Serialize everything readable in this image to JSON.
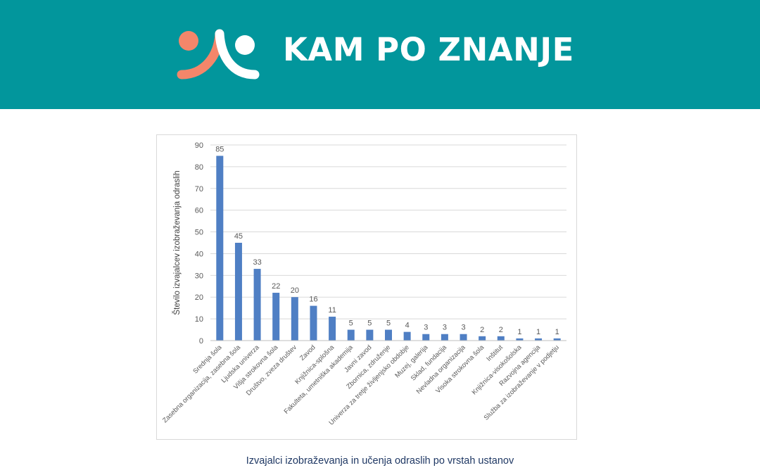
{
  "header": {
    "brand_name": "KAM PO ZNANJE",
    "background_color": "#02969c",
    "logo": {
      "icon": "kam-po-znanje-logo",
      "colors": [
        "#f4866a",
        "#ffffff"
      ]
    }
  },
  "chart_data": {
    "type": "bar",
    "title": "",
    "xlabel": "",
    "ylabel": "Število izvajalcev izobraževanja odraslih",
    "ylim": [
      0,
      90
    ],
    "yticks": [
      0,
      10,
      20,
      30,
      40,
      50,
      60,
      70,
      80,
      90
    ],
    "grid": true,
    "bar_color": "#4f7fc4",
    "categories": [
      "Srednja šola",
      "Zasebna organizacija, zasebna šola",
      "Ljudska univerza",
      "Višja strokovna šola",
      "Društvo, zveza društev",
      "Zavod",
      "Knjižnica-splošna",
      "Fakulteta, umetniška akademija",
      "Javni zavod",
      "Zbornica, združenje",
      "Univerza za tretje življenjsko obdobje",
      "Muzej, galerija",
      "Sklad, fundacija",
      "Nevladna organizacija",
      "Visoka strokovna šola",
      "Inštitut",
      "Knjižnica-visokošolska",
      "Razvojna agencija",
      "Služba za izobraževanje v podjetju"
    ],
    "values": [
      85,
      45,
      33,
      22,
      20,
      16,
      11,
      5,
      5,
      5,
      4,
      3,
      3,
      3,
      2,
      2,
      1,
      1,
      1
    ]
  },
  "caption": "Izvajalci izobraževanja in učenja odraslih po vrstah ustanov"
}
